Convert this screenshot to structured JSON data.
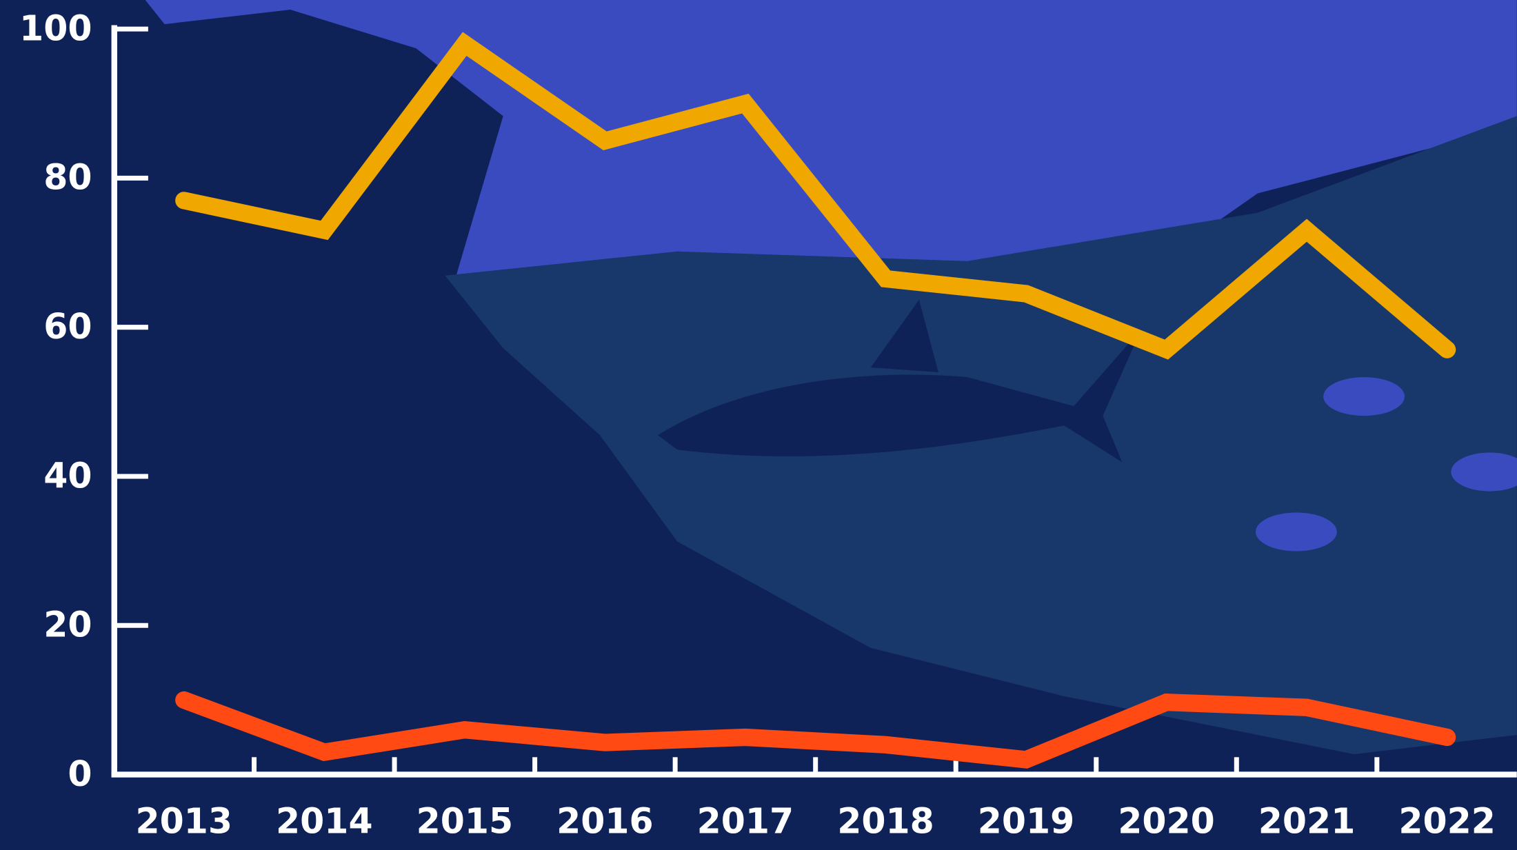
{
  "chart_data": {
    "type": "line",
    "categories": [
      "2013",
      "2014",
      "2015",
      "2016",
      "2017",
      "2018",
      "2019",
      "2020",
      "2021",
      "2022"
    ],
    "series": [
      {
        "color": "#f0a800",
        "values": [
          77,
          73,
          98,
          85,
          90,
          66.5,
          64.5,
          57,
          73,
          57
        ]
      },
      {
        "color": "#ff4a14",
        "values": [
          10,
          3,
          6,
          4.3,
          5,
          4,
          2,
          9.7,
          9,
          5
        ]
      }
    ],
    "ylim": [
      0,
      100
    ],
    "yticks": [
      0,
      20,
      40,
      60,
      80,
      100
    ]
  }
}
